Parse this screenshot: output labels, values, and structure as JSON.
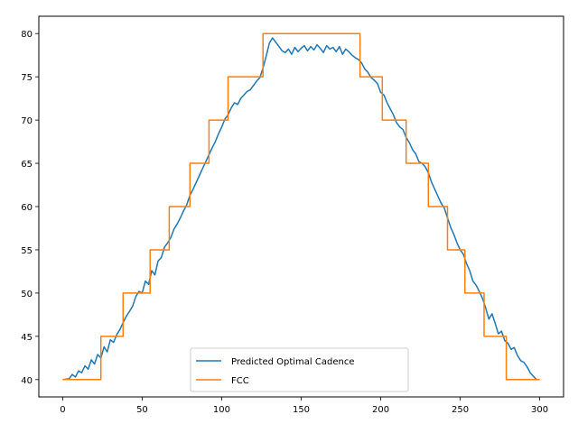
{
  "chart_data": {
    "type": "line",
    "title": "",
    "xlabel": "",
    "ylabel": "",
    "xlim": [
      -15,
      315
    ],
    "ylim": [
      38,
      82
    ],
    "xticks": [
      0,
      50,
      100,
      150,
      200,
      250,
      300
    ],
    "yticks": [
      40,
      45,
      50,
      55,
      60,
      65,
      70,
      75,
      80
    ],
    "legend_position": "lower-center",
    "series": [
      {
        "name": "Predicted Optimal Cadence",
        "color": "#1f77b4",
        "x": [
          0,
          4,
          6,
          8,
          10,
          12,
          14,
          16,
          18,
          20,
          22,
          24,
          26,
          28,
          30,
          32,
          34,
          36,
          38,
          40,
          42,
          44,
          46,
          48,
          50,
          52,
          54,
          56,
          58,
          60,
          62,
          64,
          66,
          68,
          70,
          72,
          74,
          76,
          78,
          80,
          82,
          84,
          86,
          88,
          90,
          92,
          94,
          96,
          98,
          100,
          102,
          104,
          106,
          108,
          110,
          112,
          114,
          116,
          118,
          120,
          122,
          124,
          126,
          128,
          130,
          132,
          134,
          136,
          138,
          140,
          142,
          144,
          146,
          148,
          150,
          152,
          154,
          156,
          158,
          160,
          162,
          164,
          166,
          168,
          170,
          172,
          174,
          176,
          178,
          180,
          182,
          184,
          186,
          188,
          190,
          192,
          194,
          196,
          198,
          200,
          202,
          204,
          206,
          208,
          210,
          212,
          214,
          216,
          218,
          220,
          222,
          224,
          226,
          228,
          230,
          232,
          234,
          236,
          238,
          240,
          242,
          244,
          246,
          248,
          250,
          252,
          254,
          256,
          258,
          260,
          262,
          264,
          266,
          268,
          270,
          272,
          274,
          276,
          278,
          280,
          282,
          284,
          286,
          288,
          290,
          292,
          294,
          296,
          298
        ],
        "values": [
          40,
          40.1,
          40.6,
          40.3,
          41.0,
          40.8,
          41.6,
          41.2,
          42.3,
          41.8,
          42.9,
          42.5,
          43.8,
          43.2,
          44.6,
          44.3,
          45.2,
          45.8,
          46.6,
          47.3,
          47.9,
          48.5,
          49.6,
          50.2,
          50.0,
          51.4,
          51.0,
          52.6,
          52.1,
          53.7,
          54.1,
          55.3,
          55.8,
          56.4,
          57.4,
          58.0,
          58.7,
          59.5,
          60.2,
          61.3,
          62.0,
          62.8,
          63.6,
          64.4,
          65.2,
          66.0,
          66.8,
          67.5,
          68.4,
          69.2,
          70.1,
          70.6,
          71.4,
          72.0,
          71.8,
          72.5,
          72.9,
          73.3,
          73.5,
          74.0,
          74.5,
          74.9,
          76.0,
          77.4,
          78.9,
          79.5,
          79.0,
          78.5,
          78.0,
          77.8,
          78.2,
          77.6,
          78.4,
          77.9,
          78.3,
          78.6,
          78.0,
          78.5,
          78.1,
          78.7,
          78.3,
          77.8,
          78.6,
          78.2,
          78.4,
          77.9,
          78.5,
          77.6,
          78.2,
          77.9,
          77.5,
          77.2,
          77.0,
          76.6,
          75.9,
          75.5,
          74.9,
          74.6,
          74.2,
          73.2,
          72.9,
          72.0,
          71.3,
          70.6,
          69.7,
          69.2,
          68.9,
          68.0,
          67.4,
          66.6,
          66.1,
          65.2,
          65.0,
          64.6,
          63.9,
          62.8,
          62.0,
          61.2,
          60.4,
          59.8,
          58.7,
          57.6,
          56.8,
          55.8,
          55.0,
          54.5,
          53.4,
          52.6,
          51.4,
          50.9,
          50.2,
          49.4,
          48.3,
          47.0,
          47.6,
          46.5,
          45.3,
          45.6,
          44.5,
          44.2,
          43.5,
          43.7,
          42.8,
          42.2,
          42.0,
          41.5,
          40.8,
          40.4,
          40.0
        ]
      },
      {
        "name": "FCC",
        "color": "#ff7f0e",
        "x": [
          0,
          24,
          24,
          38,
          38,
          55,
          55,
          67,
          67,
          80,
          80,
          92,
          92,
          104,
          104,
          126,
          126,
          187,
          187,
          201,
          201,
          216,
          216,
          230,
          230,
          242,
          242,
          253,
          253,
          265,
          265,
          279,
          279,
          300
        ],
        "values": [
          40,
          40,
          45,
          45,
          50,
          50,
          55,
          55,
          60,
          60,
          65,
          65,
          70,
          70,
          75,
          75,
          80,
          80,
          75,
          75,
          70,
          70,
          65,
          65,
          60,
          60,
          55,
          55,
          50,
          50,
          45,
          45,
          40,
          40
        ]
      }
    ]
  }
}
